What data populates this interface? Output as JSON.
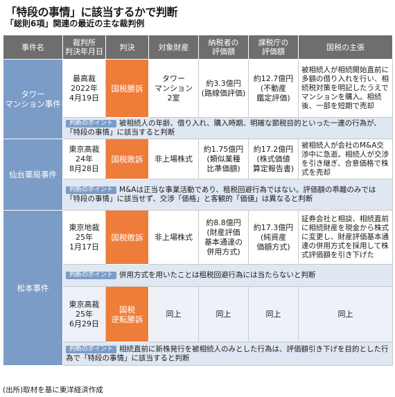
{
  "title": "「特段の事情」に該当するかで判断",
  "subtitle": "「総則6項」関連の最近の主な裁判例",
  "source": "(出所)取材を基に東洋経済作成",
  "headers": [
    "事件名",
    "裁判所\n判決年月日",
    "判決",
    "対象財産",
    "納税者の\n評価額",
    "課税庁の\n評価額",
    "国税の主張"
  ],
  "point_label": "判断のポイント",
  "cases": [
    {
      "name": "タワー\nマンション事件",
      "court": "最高裁\n2022年\n4月19日",
      "verdict": "国税勝訴",
      "asset": "タワー\nマンション\n2室",
      "taxpayer": "約3.3億円\n(路線価評価)",
      "authority": "約12.7億円\n(不動産\n鑑定評価)",
      "claim": "被相続人が相続開始直前に多額の借り入れを行い、相続税対策を明記したうえでマンションを購入。相続後、一部を短期で売却",
      "point": "被相続人の年齢、借り入れ、購入時期、明確な節税目的といった一連の行為が、「特段の事情」に該当すると判断"
    },
    {
      "name": "仙台薬局事件",
      "court": "東京高裁\n24年\n8月28日",
      "verdict": "国税敗訴",
      "asset": "非上場株式",
      "taxpayer": "約1.75億円\n(類似業種\n比準価額)",
      "authority": "約17.2億円\n(株式価値\n算定報告書)",
      "claim": "被相続人が会社のM&A交渉中に急逝。相続人が交渉を引き継ぎ、合意価格で株式を売却",
      "point": "M&Aは正当な事業活動であり、租税回避行為ではない。評価額の乖離のみでは「特段の事情」に該当せず、交渉「価格」と客観的「価値」は異なると判断"
    },
    {
      "name": "松本事件",
      "court": "東京地裁\n25年\n1月17日",
      "verdict": "国税敗訴",
      "asset": "非上場株式",
      "taxpayer": "約8.8億円\n(財産評価\n基本通達の\n併用方式)",
      "authority": "約17.3億円\n(純資産\n価額方式)",
      "claim": "証券会社と相談、相続直前に相続財産を現金から株式に変更し、財産評価基本通達の併用方式を採用して株式評価額を引き下げた",
      "point": "併用方式を用いたことは租税回避行為には当たらないと判断"
    },
    {
      "court": "東京高裁\n25年\n6月29日",
      "verdict": "国税\n逆転勝訴",
      "asset": "同上",
      "taxpayer": "同上",
      "authority": "同上",
      "claim": "同上",
      "point": "相続直前に新株発行を被相続人のみとした行為は、評価額引き下げを目的とした行為で「特段の事情」に該当すると判断"
    }
  ]
}
